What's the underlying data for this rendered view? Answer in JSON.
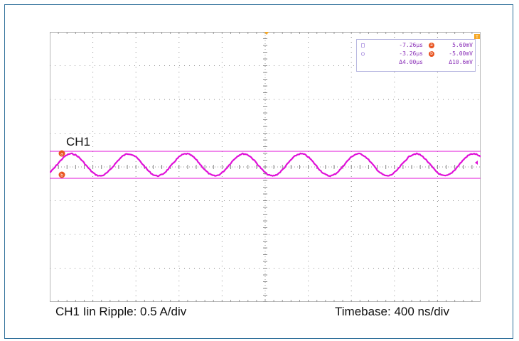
{
  "channel_label": "CH1",
  "caption_left": "CH1 Iin Ripple: 0.5 A/div",
  "caption_right": "Timebase: 400 ns/div",
  "colors": {
    "frame": "#2f6f9a",
    "trace": "#e010d8",
    "grid_dots": "#8a8a8a",
    "marker": "#e8531f",
    "readout_text": "#8a2fb8"
  },
  "cursor_readout": {
    "row1": {
      "symbol": "□",
      "time": "-7.26µs",
      "badge": "a",
      "volt": "5.60mV"
    },
    "row2": {
      "symbol": "○",
      "time": "-3.26µs",
      "badge": "b",
      "volt": "-5.00mV"
    },
    "row3": {
      "time": "Δ4.00µs",
      "volt": "Δ10.6mV"
    }
  },
  "markers": {
    "cursor_a": "a",
    "cursor_b": "b",
    "trigger": "T"
  },
  "icons": [
    "cursor-a-marker-icon",
    "cursor-b-marker-icon",
    "trigger-marker-icon",
    "ground-marker-icon"
  ],
  "chart_data": {
    "type": "line",
    "title": "",
    "series": [
      {
        "name": "CH1",
        "waveform": "sine",
        "cycles_visible": 7.5
      }
    ],
    "timebase": "400 ns/div",
    "vertical_scale": "0.5 A/div",
    "divisions": {
      "x": 10,
      "y": 8
    },
    "grid": true
  }
}
